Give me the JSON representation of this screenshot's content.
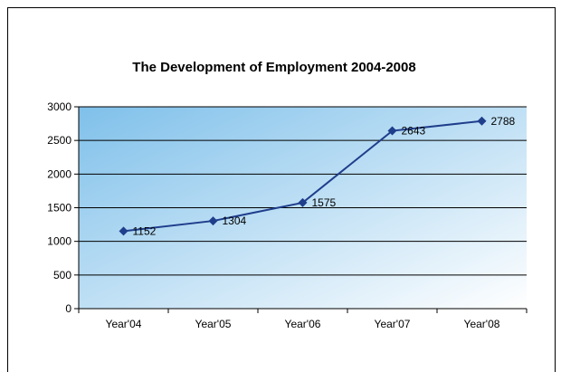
{
  "chart_data": {
    "type": "line",
    "title": "The Development of Employment 2004-2008",
    "xlabel": "",
    "ylabel": "",
    "categories": [
      "Year'04",
      "Year'05",
      "Year'06",
      "Year'07",
      "Year'08"
    ],
    "series": [
      {
        "values": [
          1152,
          1304,
          1575,
          2643,
          2788
        ]
      }
    ],
    "data_labels": [
      "1152",
      "1304",
      "1575",
      "2643",
      "2788"
    ],
    "ylim": [
      0,
      3000
    ],
    "yticks": [
      "0",
      "500",
      "1000",
      "1500",
      "2000",
      "2500",
      "3000"
    ],
    "grid": true,
    "legend": "none",
    "colors": {
      "line": "#1f3e8c",
      "marker": "#1f3e8c",
      "plot_gradient_start": "#7fc0ea",
      "plot_gradient_end": "#ffffff",
      "gridline": "#000000"
    }
  }
}
